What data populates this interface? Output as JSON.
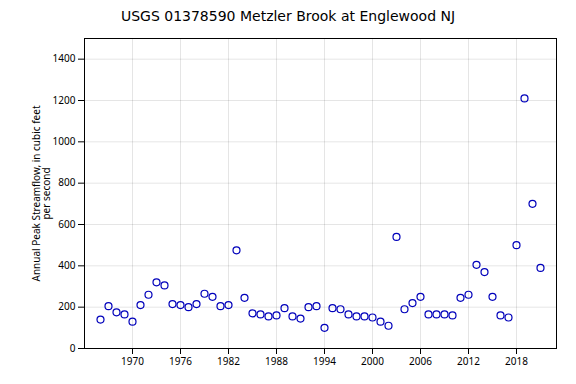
{
  "chart_data": {
    "type": "scatter",
    "title": "USGS 01378590 Metzler Brook at Englewood NJ",
    "ylabel": "Annual Peak Streamflow, in cubic feet\nper second",
    "x": [
      1966,
      1967,
      1968,
      1969,
      1970,
      1971,
      1972,
      1973,
      1974,
      1975,
      1976,
      1977,
      1978,
      1979,
      1980,
      1981,
      1982,
      1983,
      1984,
      1985,
      1986,
      1987,
      1988,
      1989,
      1990,
      1991,
      1992,
      1993,
      1994,
      1995,
      1996,
      1997,
      1998,
      1999,
      2000,
      2001,
      2002,
      2003,
      2004,
      2005,
      2006,
      2007,
      2008,
      2009,
      2010,
      2011,
      2012,
      2013,
      2014,
      2015,
      2016,
      2017,
      2018,
      2019,
      2020,
      2021
    ],
    "values": [
      140,
      205,
      175,
      165,
      130,
      210,
      260,
      320,
      305,
      215,
      210,
      200,
      215,
      265,
      250,
      205,
      210,
      475,
      245,
      170,
      165,
      155,
      160,
      195,
      155,
      145,
      200,
      205,
      100,
      195,
      190,
      165,
      155,
      155,
      150,
      130,
      110,
      540,
      190,
      220,
      250,
      165,
      165,
      165,
      160,
      245,
      260,
      405,
      370,
      250,
      160,
      150,
      500,
      1210,
      700,
      390
    ],
    "xlim": [
      1964,
      2023
    ],
    "ylim": [
      0,
      1500
    ],
    "xticks": [
      1970,
      1976,
      1982,
      1988,
      1994,
      2000,
      2006,
      2012,
      2018
    ],
    "yticks": [
      0,
      200,
      400,
      600,
      800,
      1000,
      1200,
      1400
    ],
    "color": "#0000BB",
    "marker": "o",
    "grid": true
  }
}
